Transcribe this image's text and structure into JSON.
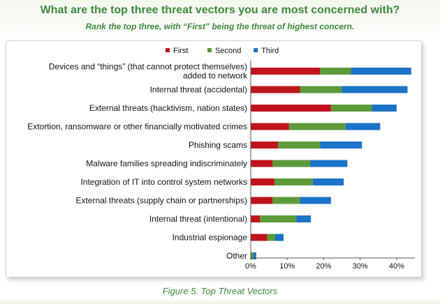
{
  "header": {
    "title": "What are the top three threat vectors you are most concerned with?",
    "subtitle": "Rank the top three, with “First” being the threat of highest concern."
  },
  "caption": "Figure 5. Top Threat Vectors",
  "colors": {
    "first": "#c0141c",
    "second": "#5c9a3a",
    "third": "#1a73c8",
    "axis": "#555555",
    "text": "#111111"
  },
  "chart_data": {
    "type": "bar",
    "orientation": "horizontal",
    "stacked": true,
    "legend_position": "top",
    "categories": [
      [
        "Devices and “things” (that cannot protect themselves)",
        "added to network"
      ],
      [
        "Internal threat (accidental)"
      ],
      [
        "External threats (hacktivism, nation states)"
      ],
      [
        "Extortion, ransomware or other financially motivated crimes"
      ],
      [
        "Phishing scams"
      ],
      [
        "Malware families spreading indiscriminately"
      ],
      [
        "Integration of IT into control system networks"
      ],
      [
        "External threats (supply chain or partnerships)"
      ],
      [
        "Internal threat (intentional)"
      ],
      [
        "Industrial espionage"
      ],
      [
        "Other"
      ]
    ],
    "series": [
      {
        "name": "First",
        "values": [
          19,
          13.5,
          22,
          10.5,
          7.5,
          6,
          6.5,
          6,
          2.5,
          4.5,
          0
        ]
      },
      {
        "name": "Second",
        "values": [
          8.5,
          11.5,
          11.2,
          15.5,
          11.5,
          10.3,
          10.5,
          7.5,
          10,
          2.2,
          0.7
        ]
      },
      {
        "name": "Third",
        "values": [
          16.5,
          18,
          6.8,
          9.5,
          11.5,
          10.2,
          8.5,
          8.5,
          4,
          2.3,
          0.8
        ]
      }
    ],
    "xlim": [
      0,
      45
    ],
    "xticks": [
      "0%",
      "10%",
      "20%",
      "30%",
      "40%"
    ],
    "xtick_values": [
      0,
      10,
      20,
      30,
      40
    ],
    "title": "",
    "xlabel": "",
    "ylabel": ""
  }
}
